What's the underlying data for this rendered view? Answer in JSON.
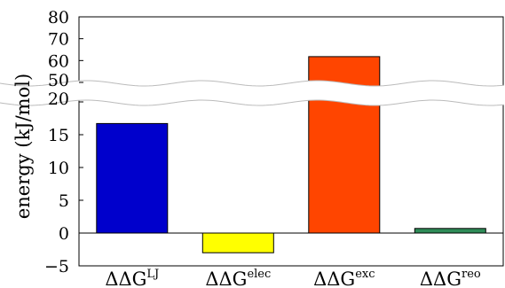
{
  "chart_data": {
    "type": "bar",
    "ylabel": "energy (kJ/mol)",
    "categories": [
      {
        "base": "ΔΔG",
        "sup": "LJ"
      },
      {
        "base": "ΔΔG",
        "sup": "elec"
      },
      {
        "base": "ΔΔG",
        "sup": "exc"
      },
      {
        "base": "ΔΔG",
        "sup": "reo"
      }
    ],
    "values": [
      16.7,
      -3.0,
      61.8,
      0.7
    ],
    "colors": [
      "#0000cc",
      "#ffff00",
      "#ff4500",
      "#2e8b57"
    ],
    "broken_axis": true,
    "lower_ylim": [
      -5,
      20
    ],
    "upper_ylim": [
      50,
      80
    ],
    "lower_yticks": [
      -5,
      0,
      5,
      10,
      15,
      20
    ],
    "upper_yticks": [
      50,
      60,
      70,
      80
    ],
    "grid": false,
    "legend": "none"
  }
}
